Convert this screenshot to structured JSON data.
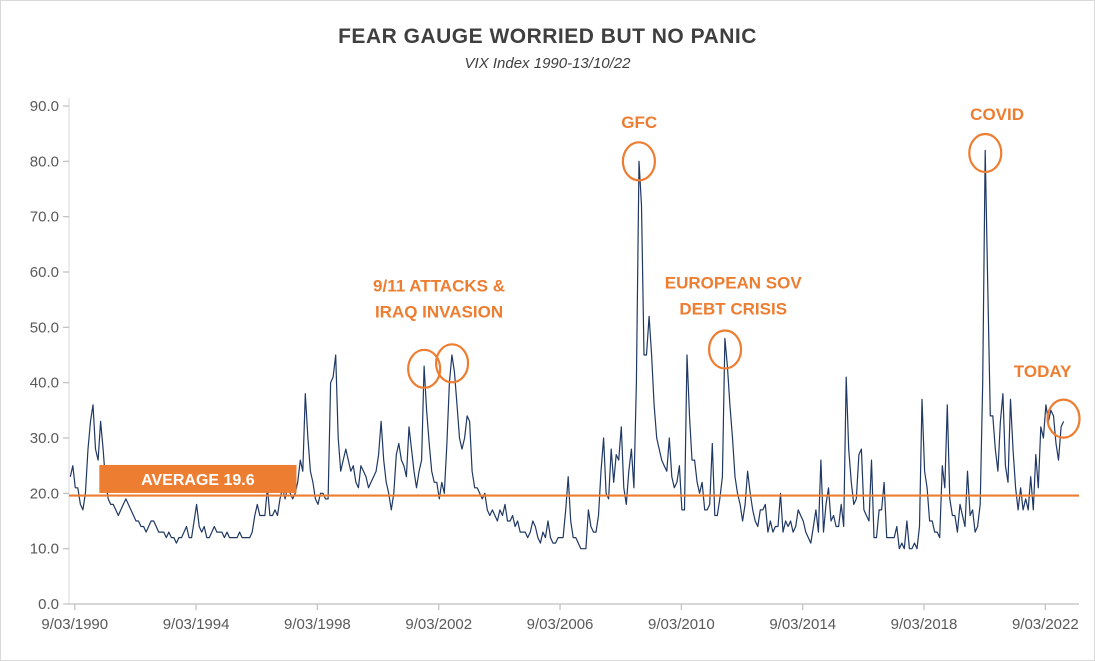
{
  "page": {
    "title": "FEAR GAUGE WORRIED BUT NO PANIC",
    "subtitle": "VIX Index 1990-13/10/22"
  },
  "chart_data": {
    "type": "line",
    "title": "FEAR GAUGE WORRIED BUT NO PANIC",
    "subtitle": "VIX Index 1990-13/10/22",
    "grid": false,
    "legend": "none",
    "ylim": [
      0,
      90
    ],
    "x_domain": [
      1990.0,
      2023.3
    ],
    "y_ticks": [
      {
        "label": "0.0",
        "value": 0
      },
      {
        "label": "10.0",
        "value": 10
      },
      {
        "label": "20.0",
        "value": 20
      },
      {
        "label": "30.0",
        "value": 30
      },
      {
        "label": "40.0",
        "value": 40
      },
      {
        "label": "50.0",
        "value": 50
      },
      {
        "label": "60.0",
        "value": 60
      },
      {
        "label": "70.0",
        "value": 70
      },
      {
        "label": "80.0",
        "value": 80
      },
      {
        "label": "90.0",
        "value": 90
      }
    ],
    "x_ticks": [
      {
        "label": "9/03/1990",
        "year": 1990.19
      },
      {
        "label": "9/03/1994",
        "year": 1994.19
      },
      {
        "label": "9/03/1998",
        "year": 1998.19
      },
      {
        "label": "9/03/2002",
        "year": 2002.19
      },
      {
        "label": "9/03/2006",
        "year": 2006.19
      },
      {
        "label": "9/03/2010",
        "year": 2010.19
      },
      {
        "label": "9/03/2014",
        "year": 2014.19
      },
      {
        "label": "9/03/2018",
        "year": 2018.19
      },
      {
        "label": "9/03/2022",
        "year": 2022.19
      }
    ],
    "colors": {
      "line": "#1F3864",
      "accent": "#ED7D31",
      "axis": "#BFBFBF",
      "tick_text": "#595959"
    },
    "series": [
      {
        "name": "VIX Index",
        "color": "#1F3864",
        "start_year": 1990,
        "points_per_year": 12,
        "values": [
          23,
          25,
          21,
          21,
          18,
          17,
          20,
          28,
          33,
          36,
          28,
          26,
          33,
          28,
          22,
          19,
          18,
          18,
          17,
          16,
          17,
          18,
          19,
          18,
          17,
          16,
          15,
          15,
          14,
          14,
          13,
          14,
          15,
          15,
          14,
          13,
          13,
          13,
          12,
          13,
          12,
          12,
          11,
          12,
          12,
          13,
          14,
          12,
          12,
          15,
          18,
          14,
          13,
          14,
          12,
          12,
          13,
          14,
          13,
          13,
          13,
          12,
          13,
          12,
          12,
          12,
          12,
          13,
          12,
          12,
          12,
          12,
          13,
          16,
          18,
          16,
          16,
          16,
          21,
          16,
          16,
          17,
          16,
          19,
          21,
          19,
          21,
          20,
          19,
          20,
          22,
          26,
          24,
          38,
          30,
          24,
          22,
          19,
          18,
          20,
          20,
          19,
          19,
          40,
          41,
          45,
          30,
          24,
          26,
          28,
          26,
          24,
          25,
          22,
          21,
          25,
          24,
          23,
          21,
          22,
          23,
          24,
          27,
          33,
          26,
          22,
          20,
          17,
          20,
          27,
          29,
          26,
          25,
          23,
          32,
          28,
          24,
          21,
          24,
          26,
          43,
          35,
          29,
          24,
          22,
          22,
          19,
          22,
          20,
          29,
          40,
          45,
          42,
          36,
          30,
          28,
          30,
          34,
          33,
          24,
          21,
          21,
          20,
          19,
          20,
          17,
          16,
          17,
          16,
          15,
          17,
          16,
          18,
          15,
          15,
          16,
          14,
          15,
          13,
          13,
          13,
          12,
          13,
          15,
          14,
          12,
          11,
          13,
          12,
          15,
          12,
          11,
          11,
          12,
          12,
          12,
          17,
          23,
          15,
          12,
          12,
          11,
          10,
          10,
          10,
          17,
          14,
          13,
          13,
          16,
          24,
          30,
          20,
          19,
          28,
          22,
          27,
          26,
          32,
          21,
          18,
          24,
          28,
          21,
          40,
          80,
          72,
          45,
          45,
          52,
          45,
          36,
          30,
          28,
          26,
          25,
          24,
          30,
          23,
          21,
          22,
          25,
          17,
          17,
          45,
          34,
          26,
          26,
          22,
          20,
          22,
          17,
          17,
          18,
          29,
          16,
          16,
          19,
          23,
          48,
          43,
          36,
          30,
          23,
          20,
          18,
          15,
          18,
          24,
          20,
          17,
          15,
          14,
          17,
          17,
          18,
          13,
          15,
          13,
          14,
          14,
          20,
          13,
          15,
          14,
          15,
          13,
          14,
          17,
          16,
          15,
          13,
          12,
          11,
          14,
          17,
          13,
          26,
          13,
          18,
          21,
          15,
          16,
          14,
          14,
          18,
          14,
          41,
          28,
          22,
          18,
          19,
          27,
          28,
          17,
          16,
          15,
          26,
          12,
          12,
          17,
          17,
          22,
          12,
          12,
          12,
          12,
          14,
          10,
          11,
          10,
          15,
          10,
          10,
          11,
          10,
          14,
          37,
          24,
          21,
          15,
          15,
          13,
          13,
          12,
          25,
          21,
          36,
          19,
          16,
          16,
          13,
          18,
          16,
          14,
          24,
          16,
          17,
          13,
          14,
          18,
          40,
          82,
          57,
          34,
          34,
          28,
          24,
          33,
          38,
          25,
          22,
          37,
          28,
          21,
          17,
          21,
          17,
          19,
          17,
          23,
          17,
          27,
          21,
          32,
          30,
          36,
          33,
          35,
          34,
          29,
          26,
          32,
          33
        ]
      }
    ],
    "average_line": {
      "value": 19.6,
      "color": "#ED7D31",
      "label": "AVERAGE 19.6",
      "label_box": {
        "x_start_year": 1991.0,
        "x_end_year": 1997.5,
        "center_value": 22.6
      }
    },
    "annotations": [
      {
        "id": "nine-eleven",
        "lines": [
          "9/11 ATTACKS &",
          "IRAQ INVASION"
        ],
        "text": {
          "year": 2002.2,
          "value": 56.5
        },
        "circles": [
          {
            "year": 2001.71,
            "value": 42.5
          },
          {
            "year": 2002.63,
            "value": 43.5
          }
        ]
      },
      {
        "id": "gfc",
        "lines": [
          "GFC"
        ],
        "text": {
          "year": 2008.8,
          "value": 86.0
        },
        "circles": [
          {
            "year": 2008.79,
            "value": 80.0
          }
        ]
      },
      {
        "id": "euro-debt",
        "lines": [
          "EUROPEAN SOV",
          "DEBT CRISIS"
        ],
        "text": {
          "year": 2011.9,
          "value": 57.0
        },
        "circles": [
          {
            "year": 2011.63,
            "value": 46.0
          }
        ]
      },
      {
        "id": "covid",
        "lines": [
          "COVID"
        ],
        "text": {
          "year": 2020.6,
          "value": 87.5
        },
        "circles": [
          {
            "year": 2020.21,
            "value": 81.5
          }
        ]
      },
      {
        "id": "today",
        "lines": [
          "TODAY"
        ],
        "text": {
          "year": 2022.1,
          "value": 41.0
        },
        "circles": [
          {
            "year": 2022.79,
            "value": 33.5
          }
        ]
      }
    ]
  }
}
